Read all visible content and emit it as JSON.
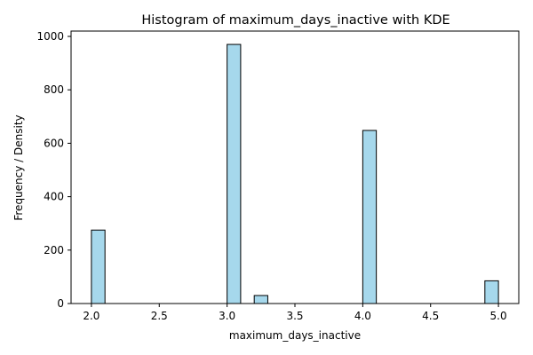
{
  "chart_data": {
    "type": "bar",
    "title": "Histogram of maximum_days_inactive with KDE",
    "xlabel": "maximum_days_inactive",
    "ylabel": "Frequency / Density",
    "xlim": [
      1.85,
      5.15
    ],
    "ylim": [
      0,
      1020
    ],
    "xticks": [
      2.0,
      2.5,
      3.0,
      3.5,
      4.0,
      4.5,
      5.0
    ],
    "xtick_labels": [
      "2.0",
      "2.5",
      "3.0",
      "3.5",
      "4.0",
      "4.5",
      "5.0"
    ],
    "yticks": [
      0,
      200,
      400,
      600,
      800,
      1000
    ],
    "ytick_labels": [
      "0",
      "200",
      "400",
      "600",
      "800",
      "1000"
    ],
    "bin_width": 0.1,
    "bins": [
      {
        "x_start": 2.0,
        "x_end": 2.1,
        "count": 275
      },
      {
        "x_start": 3.0,
        "x_end": 3.1,
        "count": 970
      },
      {
        "x_start": 3.2,
        "x_end": 3.3,
        "count": 30
      },
      {
        "x_start": 4.0,
        "x_end": 4.1,
        "count": 648
      },
      {
        "x_start": 4.9,
        "x_end": 5.0,
        "count": 85
      }
    ],
    "grid": false,
    "legend": "none",
    "colors": {
      "bar_fill": "#a6d8ec",
      "bar_edge": "#000000",
      "axis": "#000000"
    }
  }
}
